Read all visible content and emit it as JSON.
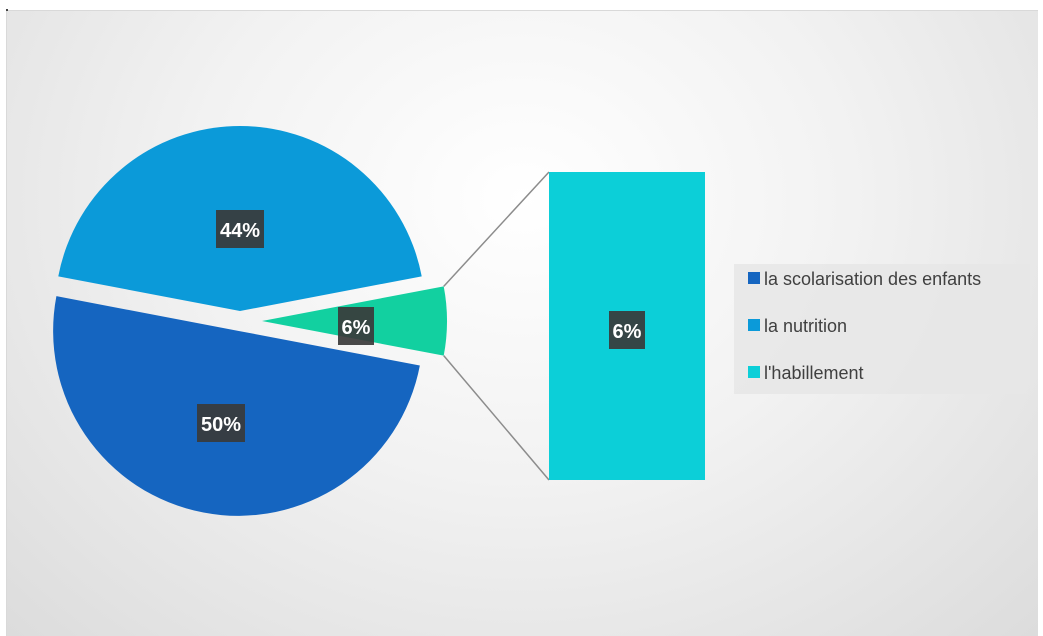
{
  "chart_data": {
    "type": "pie",
    "variant": "bar-of-pie",
    "categories": [
      "la scolarisation des enfants",
      "la nutrition",
      "l'habillement"
    ],
    "values": [
      50,
      44,
      6
    ],
    "data_labels": [
      "50%",
      "44%",
      "6%"
    ],
    "secondary_bar": {
      "categories": [
        "l'habillement"
      ],
      "values": [
        6
      ],
      "data_labels": [
        "6%"
      ]
    },
    "colors": [
      "#1565C0",
      "#0B9AD9",
      "#12D0A0"
    ],
    "secondary_color": "#0CCFD8",
    "legend_position": "right"
  }
}
